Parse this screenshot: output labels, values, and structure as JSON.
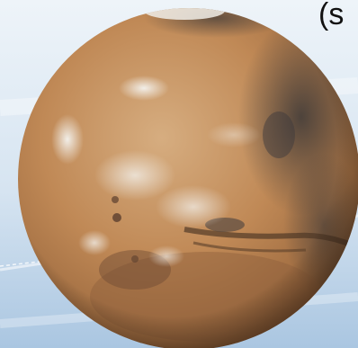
{
  "slide": {
    "partial_title_text": "(s"
  },
  "colors": {
    "background_light": "#e9f1f8",
    "background_mid": "#c9dced",
    "background_blue": "#a9c5e0",
    "planet_rust": "#b9804f",
    "planet_tan": "#cfa374",
    "planet_dark": "#3a3a3e",
    "cloud_white": "#f2f2f0",
    "text": "#111111"
  }
}
